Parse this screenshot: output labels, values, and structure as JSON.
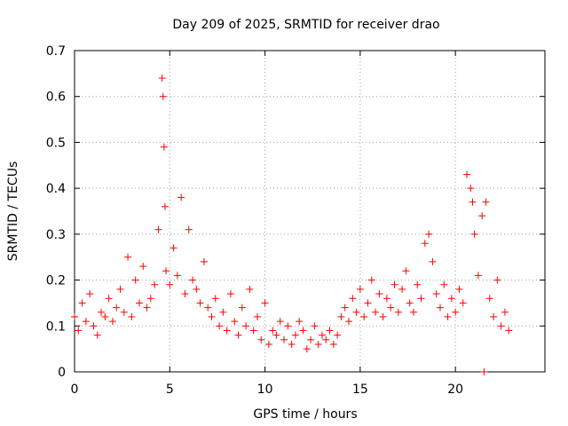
{
  "chart_data": {
    "type": "scatter",
    "title": "Day 209 of 2025, SRMTID for receiver drao",
    "xlabel": "GPS time / hours",
    "ylabel": "SRMTID / TECUs",
    "xlim": [
      0,
      24.7
    ],
    "ylim": [
      0,
      0.7
    ],
    "xticks": [
      0,
      5,
      10,
      15,
      20
    ],
    "xtick_labels": [
      "0",
      "5",
      "10",
      "15",
      "20"
    ],
    "yticks": [
      0,
      0.1,
      0.2,
      0.3,
      0.4,
      0.5,
      0.6,
      0.7
    ],
    "ytick_labels": [
      "0",
      "0.1",
      "0.2",
      "0.3",
      "0.4",
      "0.5",
      "0.6",
      "0.7"
    ],
    "grid": true,
    "marker": "+",
    "series": [
      {
        "name": "SRMTID",
        "color": "#ff0000",
        "x": [
          0.0,
          0.2,
          0.4,
          0.6,
          0.8,
          1.0,
          1.2,
          1.4,
          1.6,
          1.8,
          2.0,
          2.2,
          2.4,
          2.6,
          2.8,
          3.0,
          3.2,
          3.4,
          3.6,
          3.8,
          4.0,
          4.2,
          4.4,
          4.6,
          4.65,
          4.7,
          4.75,
          4.8,
          5.0,
          5.2,
          5.4,
          5.6,
          5.8,
          6.0,
          6.2,
          6.4,
          6.6,
          6.8,
          7.0,
          7.2,
          7.4,
          7.6,
          7.8,
          8.0,
          8.2,
          8.4,
          8.6,
          8.8,
          9.0,
          9.2,
          9.4,
          9.6,
          9.8,
          10.0,
          10.2,
          10.4,
          10.6,
          10.8,
          11.0,
          11.2,
          11.4,
          11.6,
          11.8,
          12.0,
          12.2,
          12.4,
          12.6,
          12.8,
          13.0,
          13.2,
          13.4,
          13.6,
          13.8,
          14.0,
          14.2,
          14.4,
          14.6,
          14.8,
          15.0,
          15.2,
          15.4,
          15.6,
          15.8,
          16.0,
          16.2,
          16.4,
          16.6,
          16.8,
          17.0,
          17.2,
          17.4,
          17.6,
          17.8,
          18.0,
          18.2,
          18.4,
          18.6,
          18.8,
          19.0,
          19.2,
          19.4,
          19.6,
          19.8,
          20.0,
          20.2,
          20.4,
          20.6,
          20.8,
          20.9,
          21.0,
          21.2,
          21.4,
          21.5,
          21.6,
          21.8,
          22.0,
          22.2,
          22.4,
          22.6,
          22.8
        ],
        "y": [
          0.12,
          0.09,
          0.15,
          0.11,
          0.17,
          0.1,
          0.08,
          0.13,
          0.12,
          0.16,
          0.11,
          0.14,
          0.18,
          0.13,
          0.25,
          0.12,
          0.2,
          0.15,
          0.23,
          0.14,
          0.16,
          0.19,
          0.31,
          0.64,
          0.6,
          0.49,
          0.36,
          0.22,
          0.19,
          0.27,
          0.21,
          0.38,
          0.17,
          0.31,
          0.2,
          0.18,
          0.15,
          0.24,
          0.14,
          0.12,
          0.16,
          0.1,
          0.13,
          0.09,
          0.17,
          0.11,
          0.08,
          0.14,
          0.1,
          0.18,
          0.09,
          0.12,
          0.07,
          0.15,
          0.06,
          0.09,
          0.08,
          0.11,
          0.07,
          0.1,
          0.06,
          0.08,
          0.11,
          0.09,
          0.05,
          0.07,
          0.1,
          0.06,
          0.08,
          0.07,
          0.09,
          0.06,
          0.08,
          0.12,
          0.14,
          0.11,
          0.16,
          0.13,
          0.18,
          0.12,
          0.15,
          0.2,
          0.13,
          0.17,
          0.12,
          0.16,
          0.14,
          0.19,
          0.13,
          0.18,
          0.22,
          0.15,
          0.13,
          0.19,
          0.16,
          0.28,
          0.3,
          0.24,
          0.17,
          0.14,
          0.19,
          0.12,
          0.16,
          0.13,
          0.18,
          0.15,
          0.43,
          0.4,
          0.37,
          0.3,
          0.21,
          0.34,
          0.0,
          0.37,
          0.16,
          0.12,
          0.2,
          0.1,
          0.13,
          0.09
        ]
      }
    ]
  }
}
